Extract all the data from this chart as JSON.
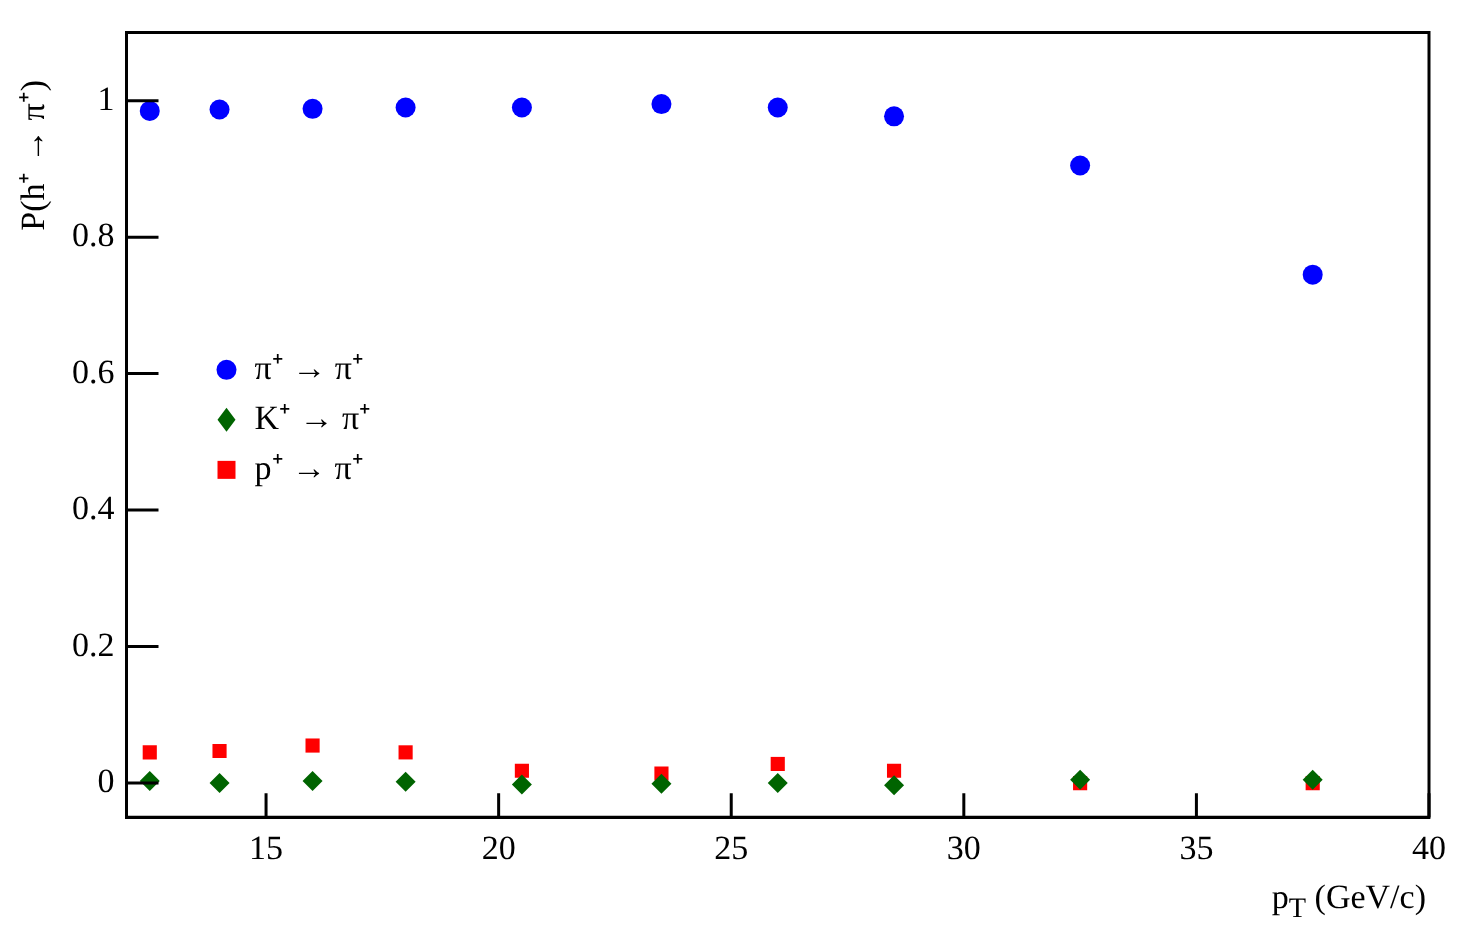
{
  "chart_data": {
    "type": "scatter",
    "xlabel": "p$_{T}$ (GeV/c)",
    "ylabel": "P(h⁺ → π⁺)",
    "x": [
      12.5,
      14,
      16,
      18,
      20.5,
      23.5,
      26,
      28.5,
      32.5,
      37.5
    ],
    "series": [
      {
        "name": "π⁺ → π⁺",
        "color": "#0000ff",
        "marker": "circle",
        "values": [
          0.985,
          0.987,
          0.988,
          0.99,
          0.99,
          0.995,
          0.99,
          0.977,
          0.905,
          0.745
        ]
      },
      {
        "name": "K⁺ → π⁺",
        "color": "#006400",
        "marker": "diamond",
        "values": [
          0.003,
          0.0,
          0.003,
          0.002,
          -0.002,
          -0.001,
          0.0,
          -0.003,
          0.005,
          0.005
        ]
      },
      {
        "name": "p⁺ → π⁺",
        "color": "#ff0000",
        "marker": "square",
        "values": [
          0.045,
          0.047,
          0.055,
          0.045,
          0.018,
          0.014,
          0.028,
          0.018,
          0.0,
          0.0
        ]
      }
    ],
    "xlim": [
      12,
      40
    ],
    "xticks": [
      15,
      20,
      25,
      30,
      35,
      40
    ],
    "ylim": [
      -0.05,
      1.1
    ],
    "yticks": [
      0,
      0.2,
      0.4,
      0.6,
      0.8,
      1
    ],
    "grid": false,
    "legend": "left"
  }
}
